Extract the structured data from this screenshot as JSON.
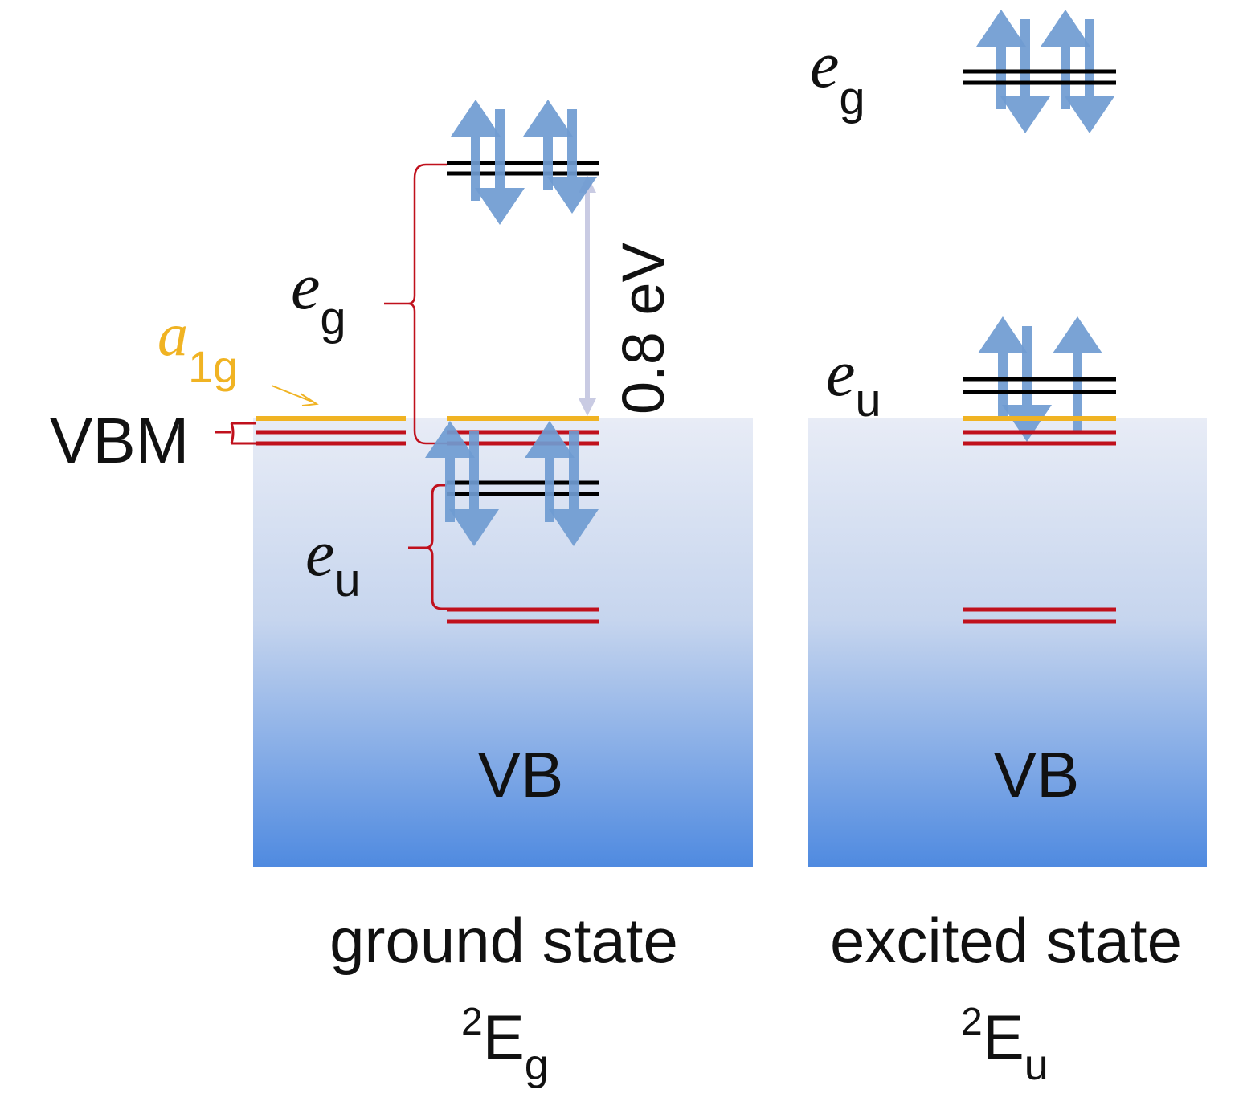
{
  "colors": {
    "occupied_level": "#000000",
    "red_level": "#c0101c",
    "a1g_level": "#f0b323",
    "spin_arrow": "#6f9bd1",
    "gap_arrow": "#c9cbe3",
    "vb_top": "#e8ecf6",
    "vb_bottom": "#4f8ae0",
    "brace": "#c0101c"
  },
  "labels": {
    "vbm": "VBM",
    "a1g_main": "a",
    "a1g_sub": "1g",
    "gap": "0.8 eV",
    "vb_ground": "VB",
    "vb_excited": "VB"
  },
  "ground": {
    "eg_main": "e",
    "eg_sub": "g",
    "eu_main": "e",
    "eu_sub": "u",
    "caption": "ground state",
    "term_sup": "2",
    "term_main": "E",
    "term_sub": "g"
  },
  "excited": {
    "eg_main": "e",
    "eg_sub": "g",
    "eu_main": "e",
    "eu_sub": "u",
    "caption": "excited state",
    "term_sup": "2",
    "term_main": "E",
    "term_sub": "u"
  }
}
